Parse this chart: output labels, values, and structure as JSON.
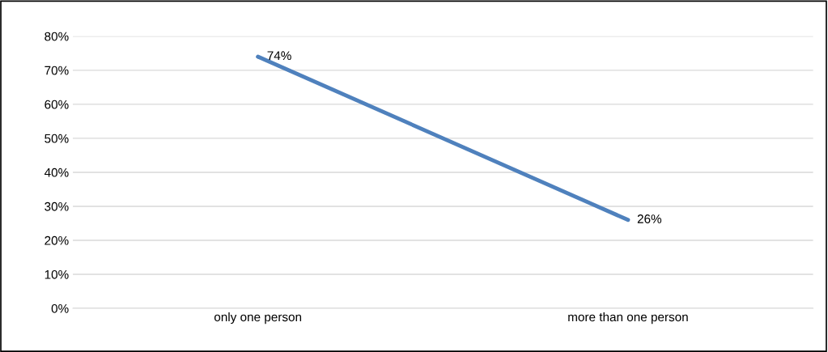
{
  "chart_data": {
    "type": "line",
    "categories": [
      "only one person",
      "more than one person"
    ],
    "series": [
      {
        "color": "#4f81bd",
        "values": [
          74,
          26
        ],
        "value_labels": [
          "74%",
          "26%"
        ]
      }
    ],
    "ylim": [
      0,
      80
    ],
    "yticks": [
      {
        "value": 0,
        "label": "0%"
      },
      {
        "value": 10,
        "label": "10%"
      },
      {
        "value": 20,
        "label": "20%"
      },
      {
        "value": 30,
        "label": "30%"
      },
      {
        "value": 40,
        "label": "40%"
      },
      {
        "value": 50,
        "label": "50%"
      },
      {
        "value": 60,
        "label": "60%"
      },
      {
        "value": 70,
        "label": "70%"
      },
      {
        "value": 80,
        "label": "80%"
      }
    ],
    "grid": "y",
    "legend": false,
    "marker": "none",
    "line_style": "solid"
  }
}
